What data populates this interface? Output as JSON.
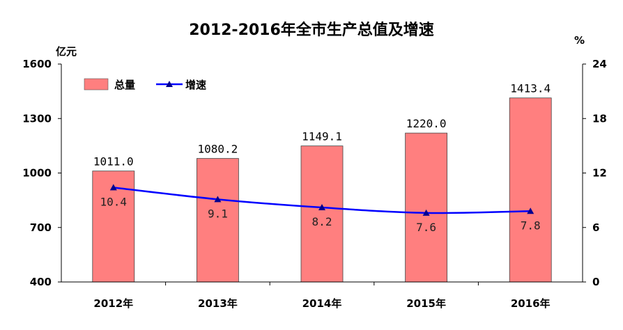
{
  "chart_data": {
    "type": "bar",
    "title": "2012-2016年全市生产总值及增速",
    "categories": [
      "2012年",
      "2013年",
      "2014年",
      "2015年",
      "2016年"
    ],
    "y_left": {
      "unit_label": "亿元",
      "range": [
        400,
        1600
      ],
      "ticks": [
        400,
        700,
        1000,
        1300,
        1600
      ]
    },
    "y_right": {
      "unit_label": "%",
      "range": [
        0,
        24
      ],
      "ticks": [
        0,
        6,
        12,
        18,
        24
      ]
    },
    "series": [
      {
        "name": "总量",
        "type": "bar",
        "axis": "left",
        "color": "#ff7f7f",
        "values": [
          1011.0,
          1080.2,
          1149.1,
          1220.0,
          1413.4
        ],
        "labels": [
          "1011.0",
          "1080.2",
          "1149.1",
          "1220.0",
          "1413.4"
        ]
      },
      {
        "name": "增速",
        "type": "line",
        "axis": "right",
        "color": "#0000ff",
        "values": [
          10.4,
          9.1,
          8.2,
          7.6,
          7.8
        ],
        "labels": [
          "10.4",
          "9.1",
          "8.2",
          "7.6",
          "7.8"
        ]
      }
    ],
    "legend": {
      "position": "top-left",
      "items": [
        "总量",
        "增速"
      ]
    },
    "grid": false
  }
}
